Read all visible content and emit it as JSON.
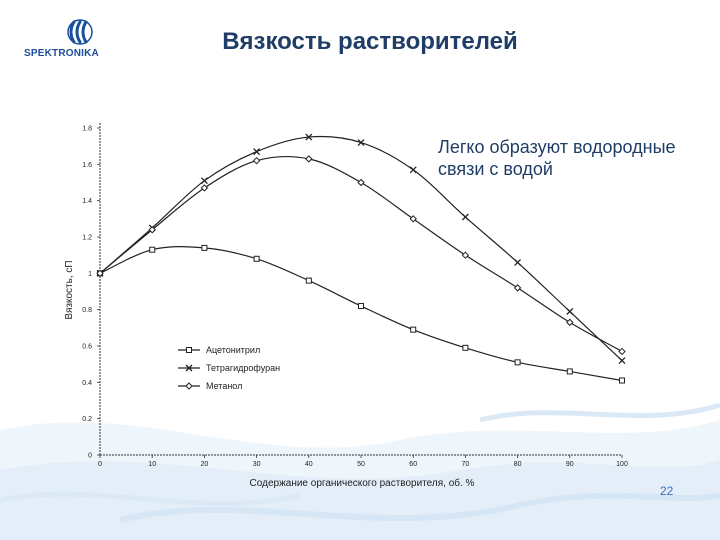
{
  "slide": {
    "title": "Вязкость растворителей",
    "note": "Легко образуют водородные связи с водой",
    "page_number": "22",
    "logo_text": "SPEKTRONIKA",
    "accent_color": "#1f3d66",
    "logo_color": "#1a4f9c"
  },
  "chart_data": {
    "type": "line",
    "title": "",
    "xlabel": "Содержание органического растворителя, об. %",
    "ylabel": "Вязкость, сП",
    "xlim": [
      0,
      100
    ],
    "ylim": [
      0,
      1.8
    ],
    "x_ticks": [
      "0",
      "10",
      "20",
      "30",
      "40",
      "50",
      "60",
      "70",
      "80",
      "90",
      "100"
    ],
    "y_ticks": [
      "0",
      "0.2",
      "0.4",
      "0.6",
      "0.8",
      "1",
      "1.2",
      "1.4",
      "1.6",
      "1.8"
    ],
    "x": [
      0,
      10,
      20,
      30,
      40,
      50,
      60,
      70,
      80,
      90,
      100
    ],
    "series": [
      {
        "name": "Ацетонитрил",
        "marker": "square",
        "values": [
          1.0,
          1.13,
          1.14,
          1.08,
          0.96,
          0.82,
          0.69,
          0.59,
          0.51,
          0.46,
          0.41
        ]
      },
      {
        "name": "Тетрагидрофуран",
        "marker": "cross",
        "values": [
          1.0,
          1.25,
          1.51,
          1.67,
          1.75,
          1.72,
          1.57,
          1.31,
          1.06,
          0.79,
          0.52
        ]
      },
      {
        "name": "Метанол",
        "marker": "diamond",
        "values": [
          1.0,
          1.24,
          1.47,
          1.62,
          1.63,
          1.5,
          1.3,
          1.1,
          0.92,
          0.73,
          0.57
        ]
      }
    ],
    "legend_position": "bottom-left",
    "grid": false
  }
}
